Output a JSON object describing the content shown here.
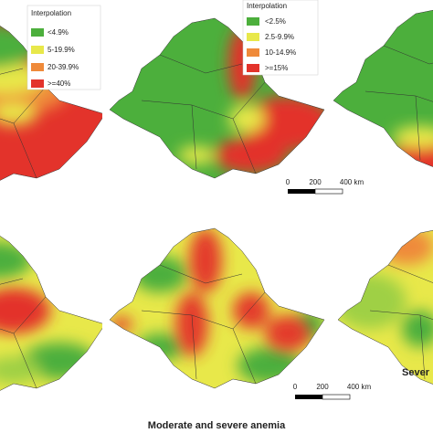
{
  "legends": [
    {
      "title": "Interpolation",
      "items": [
        "<4.9%",
        "5-19.9%",
        "20-39.9%",
        ">=40%"
      ]
    },
    {
      "title": "Interpolation",
      "items": [
        "<2.5%",
        "2.5-9.9%",
        "10-14.9%",
        ">=15%"
      ]
    }
  ],
  "scale_bars": [
    {
      "labels": [
        "0",
        "200",
        "400 km"
      ]
    },
    {
      "labels": [
        "0",
        "200",
        "400 km"
      ]
    }
  ],
  "captions": {
    "bottom_middle": "Moderate and severe anemia",
    "bottom_right": "Sever"
  }
}
